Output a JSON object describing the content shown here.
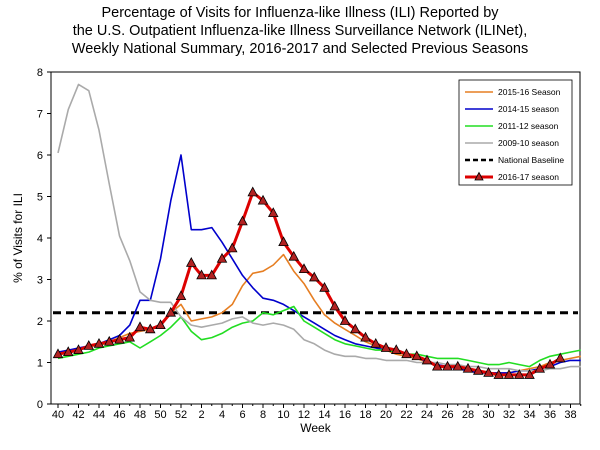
{
  "chart_data": {
    "type": "line",
    "title_lines": [
      "Percentage of Visits for Influenza-like Illness (ILI) Reported by",
      "the U.S. Outpatient Influenza-like Illness Surveillance Network (ILINet),",
      "Weekly National Summary, 2016-2017 and Selected Previous Seasons"
    ],
    "xlabel": "Week",
    "ylabel": "% of Visits for ILI",
    "ylim": [
      0,
      8
    ],
    "yticks": [
      0,
      1,
      2,
      3,
      4,
      5,
      6,
      7,
      8
    ],
    "x": [
      "40",
      "41",
      "42",
      "43",
      "44",
      "45",
      "46",
      "47",
      "48",
      "49",
      "50",
      "51",
      "52",
      "1",
      "2",
      "3",
      "4",
      "5",
      "6",
      "7",
      "8",
      "9",
      "10",
      "11",
      "12",
      "13",
      "14",
      "15",
      "16",
      "17",
      "18",
      "19",
      "20",
      "21",
      "22",
      "23",
      "24",
      "25",
      "26",
      "27",
      "28",
      "29",
      "30",
      "31",
      "32",
      "33",
      "34",
      "35",
      "36",
      "37",
      "38",
      "39"
    ],
    "xtick_labels": [
      "40",
      "42",
      "44",
      "46",
      "48",
      "50",
      "52",
      "2",
      "4",
      "6",
      "8",
      "10",
      "12",
      "14",
      "16",
      "18",
      "20",
      "22",
      "24",
      "26",
      "28",
      "30",
      "32",
      "34",
      "36",
      "38"
    ],
    "baseline": {
      "name": "National Baseline",
      "value": 2.2,
      "color": "#000000"
    },
    "legend_position": "top-right",
    "series": [
      {
        "name": "2015-16 Season",
        "color": "#e67e22",
        "values": [
          1.2,
          1.3,
          1.3,
          1.4,
          1.4,
          1.5,
          1.6,
          1.7,
          1.75,
          1.8,
          1.9,
          2.2,
          2.4,
          2.0,
          2.05,
          2.1,
          2.2,
          2.4,
          2.85,
          3.15,
          3.2,
          3.35,
          3.6,
          3.2,
          2.9,
          2.5,
          2.15,
          1.95,
          1.8,
          1.65,
          1.5,
          1.4,
          1.3,
          1.2,
          1.15,
          1.1,
          1.0,
          0.95,
          0.9,
          0.85,
          0.8,
          0.75,
          0.75,
          0.75,
          0.75,
          0.8,
          0.85,
          0.9,
          1.0,
          1.05,
          1.1,
          1.15
        ]
      },
      {
        "name": "2014-15 season",
        "color": "#0000cc",
        "values": [
          1.25,
          1.3,
          1.35,
          1.4,
          1.45,
          1.55,
          1.65,
          1.9,
          2.5,
          2.5,
          3.5,
          4.9,
          6.0,
          4.2,
          4.2,
          4.25,
          3.9,
          3.5,
          3.1,
          2.8,
          2.55,
          2.5,
          2.4,
          2.25,
          2.1,
          1.95,
          1.8,
          1.65,
          1.55,
          1.45,
          1.4,
          1.35,
          1.3,
          1.25,
          1.2,
          1.15,
          1.0,
          0.95,
          0.9,
          0.85,
          0.8,
          0.75,
          0.75,
          0.75,
          0.75,
          0.8,
          0.8,
          0.85,
          0.9,
          1.0,
          1.05,
          1.05
        ]
      },
      {
        "name": "2011-12 season",
        "color": "#22dd22",
        "values": [
          1.1,
          1.15,
          1.2,
          1.25,
          1.35,
          1.4,
          1.45,
          1.5,
          1.35,
          1.5,
          1.65,
          1.85,
          2.1,
          1.75,
          1.55,
          1.6,
          1.7,
          1.85,
          1.95,
          2.0,
          2.2,
          2.15,
          2.25,
          2.35,
          2.0,
          1.85,
          1.7,
          1.55,
          1.45,
          1.4,
          1.35,
          1.3,
          1.3,
          1.25,
          1.2,
          1.2,
          1.15,
          1.1,
          1.1,
          1.1,
          1.05,
          1.0,
          0.95,
          0.95,
          1.0,
          0.95,
          0.9,
          1.05,
          1.15,
          1.2,
          1.25,
          1.3
        ]
      },
      {
        "name": "2009-10 season",
        "color": "#aaaaaa",
        "values": [
          6.05,
          7.1,
          7.7,
          7.55,
          6.6,
          5.3,
          4.05,
          3.45,
          2.7,
          2.5,
          2.45,
          2.45,
          2.1,
          1.9,
          1.85,
          1.9,
          1.95,
          2.05,
          2.1,
          1.95,
          1.9,
          1.95,
          1.9,
          1.8,
          1.55,
          1.45,
          1.3,
          1.2,
          1.15,
          1.15,
          1.1,
          1.1,
          1.05,
          1.05,
          1.05,
          1.0,
          1.0,
          1.0,
          0.95,
          0.95,
          0.9,
          0.9,
          0.85,
          0.85,
          0.85,
          0.8,
          0.8,
          0.8,
          0.85,
          0.85,
          0.9,
          0.9
        ]
      },
      {
        "name": "2016-17 season",
        "color": "#dd0000",
        "marker": "triangle",
        "values": [
          1.2,
          1.25,
          1.3,
          1.4,
          1.45,
          1.5,
          1.55,
          1.6,
          1.85,
          1.8,
          1.9,
          2.2,
          2.6,
          3.4,
          3.1,
          3.1,
          3.5,
          3.75,
          4.4,
          5.1,
          4.9,
          4.6,
          3.9,
          3.55,
          3.25,
          3.05,
          2.8,
          2.35,
          2.0,
          1.8,
          1.6,
          1.45,
          1.35,
          1.3,
          1.2,
          1.15,
          1.05,
          0.9,
          0.9,
          0.9,
          0.85,
          0.8,
          0.75,
          0.7,
          0.7,
          0.7,
          0.7,
          0.85,
          0.95,
          1.1,
          null,
          null
        ]
      }
    ]
  }
}
